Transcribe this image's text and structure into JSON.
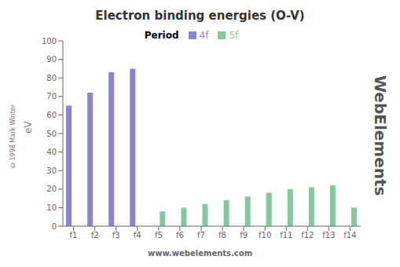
{
  "chart_data": {
    "type": "bar",
    "title": "Electron binding energies (O-V)",
    "categories": [
      "f1",
      "f2",
      "f3",
      "f4",
      "f5",
      "f6",
      "f7",
      "f8",
      "f9",
      "f10",
      "f11",
      "f12",
      "f13",
      "f14"
    ],
    "series": [
      {
        "name": "4f",
        "color": "#8884d8",
        "values": [
          65,
          72,
          83,
          85,
          0,
          0,
          0,
          0,
          0,
          0,
          0,
          0,
          0,
          0
        ]
      },
      {
        "name": "5f",
        "color": "#82ca9d",
        "values": [
          0,
          0,
          0,
          0,
          8,
          10,
          12,
          14,
          16,
          18,
          20,
          21,
          22,
          10
        ]
      }
    ],
    "y_label": "eV",
    "ylim": [
      0,
      100
    ],
    "yticks": [
      0,
      10,
      20,
      30,
      40,
      50,
      60,
      70,
      80,
      90,
      100
    ],
    "grid": false,
    "legend": "top",
    "annotations": [
      "Period",
      "www.webelements.com",
      "WebElements",
      "©1998 Mark Winter"
    ]
  }
}
